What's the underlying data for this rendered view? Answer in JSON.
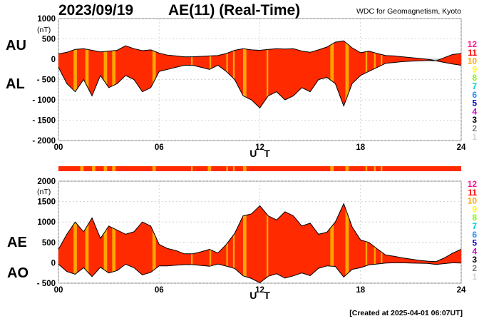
{
  "header": {
    "date": "2023/09/19",
    "index_title": "AE(11) (Real-Time)",
    "source": "WDC for Geomagnetism, Kyoto"
  },
  "footer": {
    "created": "[Created at 2025-04-01 06:07UT]"
  },
  "colors": {
    "fill": "#ff2a00",
    "orange_band": "#ffa500",
    "curve": "#000000",
    "gridline": "#c8c8c8"
  },
  "chart_data": [
    {
      "type": "area",
      "panel": "AU/AL",
      "series": [
        {
          "name": "AU",
          "x": [
            0,
            0.5,
            1,
            1.5,
            2,
            2.5,
            3,
            3.5,
            4,
            4.5,
            5,
            5.5,
            6,
            6.5,
            7,
            7.5,
            8,
            8.5,
            9,
            9.5,
            10,
            10.5,
            11,
            11.5,
            12,
            12.5,
            13,
            13.5,
            14,
            14.5,
            15,
            15.5,
            16,
            16.5,
            17,
            17.5,
            18,
            18.5,
            19,
            19.5,
            20,
            20.5,
            21,
            21.5,
            22,
            22.5,
            23,
            23.5,
            24
          ],
          "values": [
            130,
            170,
            240,
            260,
            220,
            180,
            200,
            220,
            330,
            260,
            210,
            230,
            150,
            100,
            80,
            60,
            60,
            70,
            80,
            90,
            140,
            220,
            260,
            230,
            220,
            240,
            260,
            250,
            260,
            200,
            170,
            230,
            300,
            420,
            450,
            280,
            160,
            200,
            140,
            90,
            80,
            60,
            40,
            20,
            0,
            -40,
            40,
            120,
            140
          ]
        },
        {
          "name": "AL",
          "x": [
            0,
            0.5,
            1,
            1.5,
            2,
            2.5,
            3,
            3.5,
            4,
            4.5,
            5,
            5.5,
            6,
            6.5,
            7,
            7.5,
            8,
            8.5,
            9,
            9.5,
            10,
            10.5,
            11,
            11.5,
            12,
            12.5,
            13,
            13.5,
            14,
            14.5,
            15,
            15.5,
            16,
            16.5,
            17,
            17.5,
            18,
            18.5,
            19,
            19.5,
            20,
            20.5,
            21,
            21.5,
            22,
            22.5,
            23,
            23.5,
            24
          ],
          "values": [
            -200,
            -600,
            -800,
            -500,
            -900,
            -400,
            -700,
            -600,
            -400,
            -500,
            -800,
            -700,
            -300,
            -250,
            -200,
            -150,
            -150,
            -200,
            -250,
            -150,
            -300,
            -500,
            -900,
            -1000,
            -1200,
            -900,
            -800,
            -1000,
            -900,
            -700,
            -800,
            -500,
            -450,
            -600,
            -1150,
            -600,
            -400,
            -300,
            -200,
            -100,
            -80,
            -60,
            -50,
            -40,
            -30,
            -40,
            -80,
            -120,
            -150
          ]
        }
      ],
      "xlim": [
        0,
        24
      ],
      "ylim": [
        -2000,
        1000
      ],
      "xticks": [
        "00",
        "06",
        "12",
        "18",
        "24"
      ],
      "yticks": [
        "1000",
        "500",
        "0",
        "- 500",
        "- 1000",
        "- 1500",
        "- 2000"
      ],
      "unit": "(nT)",
      "xlabel": "U T",
      "labels": [
        "AU",
        "AL"
      ],
      "orange_bands": [
        [
          0.9,
          1.1
        ],
        [
          1.6,
          1.8
        ],
        [
          2.7,
          2.9
        ],
        [
          3.2,
          3.4
        ],
        [
          5.6,
          5.8
        ],
        [
          7.9,
          8.0
        ],
        [
          9.0,
          9.1
        ],
        [
          10.0,
          10.1
        ],
        [
          10.4,
          10.5
        ],
        [
          11.0,
          11.2
        ],
        [
          12.4,
          12.5
        ],
        [
          16.2,
          16.4
        ],
        [
          17.1,
          17.3
        ],
        [
          18.3,
          18.4
        ],
        [
          18.8,
          18.9
        ],
        [
          19.2,
          19.3
        ]
      ]
    },
    {
      "type": "area",
      "panel": "AE/AO",
      "series": [
        {
          "name": "AE",
          "x": [
            0,
            0.5,
            1,
            1.5,
            2,
            2.5,
            3,
            3.5,
            4,
            4.5,
            5,
            5.5,
            6,
            6.5,
            7,
            7.5,
            8,
            8.5,
            9,
            9.5,
            10,
            10.5,
            11,
            11.5,
            12,
            12.5,
            13,
            13.5,
            14,
            14.5,
            15,
            15.5,
            16,
            16.5,
            17,
            17.5,
            18,
            18.5,
            19,
            19.5,
            20,
            20.5,
            21,
            21.5,
            22,
            22.5,
            23,
            23.5,
            24
          ],
          "values": [
            330,
            700,
            1000,
            760,
            1100,
            600,
            900,
            800,
            700,
            760,
            1000,
            900,
            450,
            350,
            300,
            220,
            220,
            270,
            330,
            240,
            450,
            720,
            1150,
            1200,
            1400,
            1150,
            1050,
            1250,
            1150,
            900,
            970,
            700,
            750,
            1000,
            1450,
            880,
            560,
            500,
            340,
            190,
            160,
            120,
            90,
            60,
            40,
            30,
            120,
            240,
            330
          ]
        },
        {
          "name": "AO",
          "x": [
            0,
            0.5,
            1,
            1.5,
            2,
            2.5,
            3,
            3.5,
            4,
            4.5,
            5,
            5.5,
            6,
            6.5,
            7,
            7.5,
            8,
            8.5,
            9,
            9.5,
            10,
            10.5,
            11,
            11.5,
            12,
            12.5,
            13,
            13.5,
            14,
            14.5,
            15,
            15.5,
            16,
            16.5,
            17,
            17.5,
            18,
            18.5,
            19,
            19.5,
            20,
            20.5,
            21,
            21.5,
            22,
            22.5,
            23,
            23.5,
            24
          ],
          "values": [
            -35,
            -215,
            -280,
            -120,
            -340,
            -110,
            -250,
            -190,
            -35,
            -120,
            -295,
            -235,
            -75,
            -75,
            -60,
            -45,
            -45,
            -65,
            -85,
            -30,
            -80,
            -140,
            -320,
            -385,
            -490,
            -330,
            -270,
            -375,
            -320,
            -250,
            -315,
            -135,
            -75,
            -90,
            -350,
            -160,
            -120,
            -50,
            -30,
            -5,
            0,
            0,
            -5,
            -10,
            -15,
            -40,
            -20,
            0,
            -5
          ]
        }
      ],
      "xlim": [
        0,
        24
      ],
      "ylim": [
        -500,
        2000
      ],
      "xticks": [
        "00",
        "06",
        "12",
        "18",
        "24"
      ],
      "yticks": [
        "2000",
        "1500",
        "1000",
        "500",
        "0",
        "- 500"
      ],
      "unit": "(nT)",
      "xlabel": "U T",
      "labels": [
        "AE",
        "AO"
      ],
      "orange_bands": [
        [
          0.9,
          1.1
        ],
        [
          1.6,
          1.8
        ],
        [
          2.7,
          2.9
        ],
        [
          3.2,
          3.4
        ],
        [
          5.6,
          5.8
        ],
        [
          7.9,
          8.0
        ],
        [
          9.0,
          9.1
        ],
        [
          10.0,
          10.1
        ],
        [
          10.4,
          10.5
        ],
        [
          11.0,
          11.2
        ],
        [
          12.4,
          12.5
        ],
        [
          16.2,
          16.4
        ],
        [
          17.1,
          17.3
        ],
        [
          18.3,
          18.4
        ],
        [
          18.8,
          18.9
        ],
        [
          19.2,
          19.3
        ]
      ]
    }
  ],
  "status_bar": {
    "orange_bands": [
      [
        1.3,
        1.5
      ],
      [
        2.0,
        2.2
      ],
      [
        2.7,
        2.9
      ],
      [
        3.2,
        3.4
      ],
      [
        5.6,
        5.8
      ],
      [
        7.9,
        8.0
      ],
      [
        8.9,
        9.1
      ],
      [
        10.0,
        10.1
      ],
      [
        10.4,
        10.5
      ],
      [
        11.0,
        11.2
      ],
      [
        16.2,
        16.4
      ],
      [
        17.1,
        17.3
      ],
      [
        18.3,
        18.4
      ],
      [
        18.8,
        18.9
      ],
      [
        19.2,
        19.3
      ]
    ]
  },
  "station_legend": [
    {
      "label": "12",
      "color": "#ff1493"
    },
    {
      "label": "11",
      "color": "#ff0000"
    },
    {
      "label": "10",
      "color": "#ffa500"
    },
    {
      "label": "9",
      "color": "#ffff00"
    },
    {
      "label": "8",
      "color": "#7cfc00"
    },
    {
      "label": "7",
      "color": "#00ced1"
    },
    {
      "label": "6",
      "color": "#1e90ff"
    },
    {
      "label": "5",
      "color": "#0000cd"
    },
    {
      "label": "4",
      "color": "#cc00cc"
    },
    {
      "label": "3",
      "color": "#000000"
    },
    {
      "label": "2",
      "color": "#808080"
    },
    {
      "label": "1",
      "color": "#d3d3d3"
    }
  ]
}
